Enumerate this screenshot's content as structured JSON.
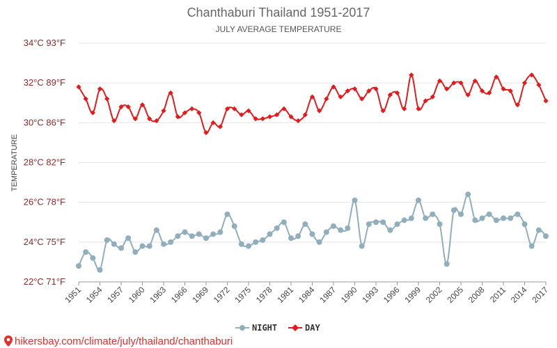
{
  "chart_data": {
    "type": "line",
    "title": "Chanthaburi Thailand 1951-2017",
    "subtitle": "JULY AVERAGE TEMPERATURE",
    "ylabel": "TEMPERATURE",
    "xlabel": "",
    "ylim": [
      22,
      34
    ],
    "xlim": [
      1951,
      2017
    ],
    "grid": true,
    "legend_position": "bottom-center",
    "y_ticks": [
      {
        "value": 22,
        "label": "22°C 71°F"
      },
      {
        "value": 24,
        "label": "24°C 75°F"
      },
      {
        "value": 26,
        "label": "26°C 78°F"
      },
      {
        "value": 28,
        "label": "28°C 82°F"
      },
      {
        "value": 30,
        "label": "30°C 86°F"
      },
      {
        "value": 32,
        "label": "32°C 89°F"
      },
      {
        "value": 34,
        "label": "34°C 93°F"
      }
    ],
    "x_ticks": [
      1951,
      1954,
      1957,
      1960,
      1963,
      1966,
      1969,
      1972,
      1975,
      1978,
      1981,
      1984,
      1987,
      1990,
      1993,
      1996,
      1999,
      2002,
      2005,
      2008,
      2011,
      2014,
      2017
    ],
    "x": [
      1951,
      1952,
      1953,
      1954,
      1955,
      1956,
      1957,
      1958,
      1959,
      1960,
      1961,
      1962,
      1963,
      1964,
      1965,
      1966,
      1967,
      1968,
      1969,
      1970,
      1971,
      1972,
      1973,
      1974,
      1975,
      1976,
      1977,
      1978,
      1979,
      1980,
      1981,
      1982,
      1983,
      1984,
      1985,
      1986,
      1987,
      1988,
      1989,
      1990,
      1991,
      1992,
      1993,
      1994,
      1995,
      1996,
      1997,
      1998,
      1999,
      2000,
      2001,
      2002,
      2003,
      2004,
      2005,
      2006,
      2007,
      2008,
      2009,
      2010,
      2011,
      2012,
      2013,
      2014,
      2015,
      2016,
      2017
    ],
    "series": [
      {
        "name": "NIGHT",
        "color": "#90aebb",
        "marker": "circle",
        "values": [
          22.8,
          23.5,
          23.2,
          22.6,
          24.1,
          23.9,
          23.7,
          24.2,
          23.5,
          23.8,
          23.8,
          24.6,
          23.9,
          24.0,
          24.3,
          24.5,
          24.3,
          24.4,
          24.2,
          24.4,
          24.5,
          25.4,
          24.8,
          23.9,
          23.8,
          24.0,
          24.1,
          24.4,
          24.7,
          25.0,
          24.2,
          24.3,
          24.9,
          24.4,
          24.0,
          24.5,
          24.8,
          24.6,
          24.7,
          26.1,
          23.8,
          24.9,
          25.0,
          25.0,
          24.6,
          24.9,
          25.1,
          25.2,
          26.1,
          25.2,
          25.4,
          24.9,
          22.9,
          25.6,
          25.4,
          26.4,
          25.1,
          25.2,
          25.4,
          25.1,
          25.2,
          25.2,
          25.4,
          24.9,
          23.8,
          24.6,
          24.3
        ]
      },
      {
        "name": "DAY",
        "color": "#e41a1c",
        "marker": "diamond",
        "values": [
          31.8,
          31.2,
          30.5,
          31.7,
          31.2,
          30.1,
          30.8,
          30.8,
          30.2,
          30.9,
          30.2,
          30.1,
          30.6,
          31.5,
          30.3,
          30.5,
          30.7,
          30.5,
          29.5,
          30.0,
          29.8,
          30.7,
          30.7,
          30.4,
          30.6,
          30.2,
          30.2,
          30.3,
          30.4,
          30.7,
          30.3,
          30.1,
          30.4,
          31.3,
          30.6,
          31.2,
          31.8,
          31.3,
          31.6,
          31.7,
          31.2,
          31.6,
          31.7,
          30.6,
          31.4,
          31.5,
          30.7,
          32.4,
          30.7,
          31.1,
          31.3,
          32.1,
          31.7,
          32.0,
          32.0,
          31.4,
          32.1,
          31.6,
          31.5,
          32.3,
          31.7,
          31.6,
          30.9,
          32.0,
          32.4,
          31.9,
          31.1
        ]
      }
    ],
    "source": "hikersbay.com/climate/july/thailand/chanthaburi"
  }
}
